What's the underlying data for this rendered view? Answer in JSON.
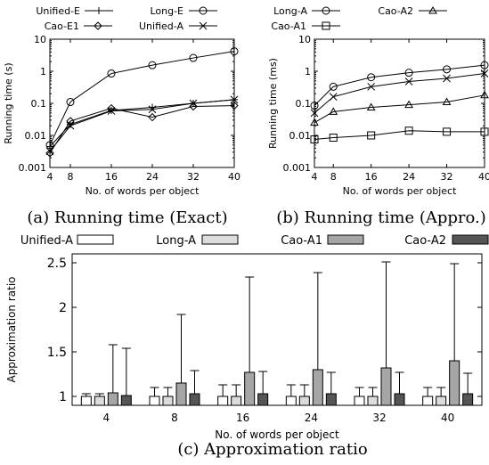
{
  "chart_data": [
    {
      "caption": "(a) Running time (Exact)",
      "type": "line",
      "xlabel": "No. of words per object",
      "ylabel": "Running time (s)",
      "x": [
        4,
        8,
        16,
        24,
        32,
        40
      ],
      "xticks": [
        "4",
        "8",
        "16",
        "24",
        "32",
        "40"
      ],
      "yscale": "log",
      "ylim": [
        0.001,
        10
      ],
      "yticks": [
        "0.001",
        "0.01",
        "0.1",
        "1",
        "10"
      ],
      "grid": false,
      "series": [
        {
          "name": "Unified-E",
          "marker": "plus",
          "values": [
            0.0045,
            0.022,
            0.06,
            0.075,
            0.1,
            0.13
          ]
        },
        {
          "name": "Cao-E1",
          "marker": "diamond",
          "values": [
            0.0028,
            0.028,
            0.07,
            0.037,
            0.08,
            0.085
          ]
        },
        {
          "name": "Long-E",
          "marker": "circle",
          "values": [
            0.005,
            0.11,
            0.85,
            1.55,
            2.6,
            4.2
          ]
        },
        {
          "name": "Unified-A",
          "marker": "x",
          "values": [
            0.0032,
            0.02,
            0.058,
            0.065,
            0.1,
            0.13
          ]
        }
      ]
    },
    {
      "caption": "(b) Running time (Appro.)",
      "type": "line",
      "xlabel": "No. of words per object",
      "ylabel": "Running time (ms)",
      "x": [
        4,
        8,
        16,
        24,
        32,
        40
      ],
      "xticks": [
        "4",
        "8",
        "16",
        "24",
        "32",
        "40"
      ],
      "yscale": "log",
      "ylim": [
        0.001,
        10
      ],
      "yticks": [
        "0.001",
        "0.01",
        "0.1",
        "1",
        "10"
      ],
      "grid": false,
      "series": [
        {
          "name": "Long-A",
          "marker": "circle",
          "values": [
            0.085,
            0.33,
            0.65,
            0.9,
            1.15,
            1.55
          ]
        },
        {
          "name": "Cao-A2",
          "marker": "triangle",
          "values": [
            0.025,
            0.055,
            0.075,
            0.09,
            0.11,
            0.18
          ]
        },
        {
          "name": "Cao-A1",
          "marker": "square",
          "values": [
            0.0075,
            0.0085,
            0.01,
            0.014,
            0.013,
            0.013
          ]
        },
        {
          "name": "Unified-A",
          "marker": "x",
          "values": [
            0.05,
            0.16,
            0.33,
            0.48,
            0.6,
            0.85
          ]
        }
      ]
    },
    {
      "caption": "(c) Approximation ratio",
      "type": "bar",
      "xlabel": "No. of words per object",
      "ylabel": "Approximation ratio",
      "categories": [
        "4",
        "8",
        "16",
        "24",
        "32",
        "40"
      ],
      "ylim": [
        0.9,
        2.6
      ],
      "yticks": [
        "1",
        "1.5",
        "2",
        "2.5"
      ],
      "grid": false,
      "series": [
        {
          "name": "Unified-A",
          "color": "#ffffff",
          "values": [
            1.0,
            1.0,
            1.0,
            1.0,
            1.0,
            1.0
          ],
          "error_max": [
            1.03,
            1.1,
            1.13,
            1.13,
            1.1,
            1.1
          ]
        },
        {
          "name": "Long-A",
          "color": "#dcdcdc",
          "values": [
            1.0,
            1.0,
            1.0,
            1.0,
            1.0,
            1.0
          ],
          "error_max": [
            1.03,
            1.1,
            1.13,
            1.13,
            1.1,
            1.1
          ]
        },
        {
          "name": "Cao-A1",
          "color": "#a6a6a6",
          "values": [
            1.04,
            1.15,
            1.27,
            1.3,
            1.32,
            1.4
          ],
          "error_max": [
            1.58,
            1.92,
            2.34,
            2.39,
            2.51,
            2.49
          ]
        },
        {
          "name": "Cao-A2",
          "color": "#555555",
          "values": [
            1.01,
            1.03,
            1.03,
            1.03,
            1.03,
            1.03
          ],
          "error_max": [
            1.54,
            1.29,
            1.28,
            1.27,
            1.27,
            1.26
          ]
        }
      ]
    }
  ]
}
